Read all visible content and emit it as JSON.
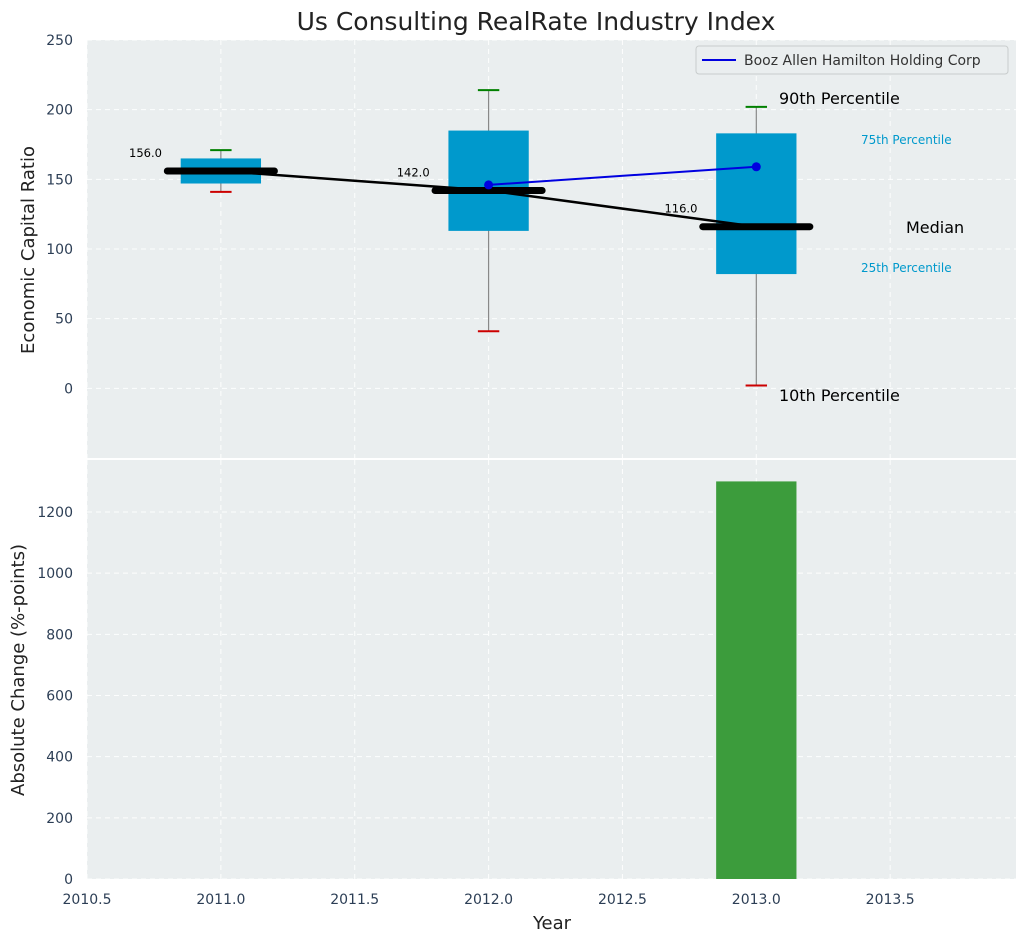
{
  "chart_data": [
    {
      "type": "box",
      "title": "Us Consulting RealRate Industry Index",
      "ylabel": "Economic Capital Ratio",
      "ylim": [
        -50,
        250
      ],
      "yticks": [
        0,
        50,
        100,
        150,
        200,
        250
      ],
      "grid": true,
      "legend_placement": "top-right",
      "boxes": [
        {
          "x": 2011,
          "p10": 141,
          "p25": 147,
          "median": 156,
          "p75": 165,
          "p90": 171,
          "median_label": "156.0"
        },
        {
          "x": 2012,
          "p10": 41,
          "p25": 113,
          "median": 142,
          "p75": 185,
          "p90": 214,
          "median_label": "142.0"
        },
        {
          "x": 2013,
          "p10": 2,
          "p25": 82,
          "median": 116,
          "p75": 183,
          "p90": 202,
          "median_label": "116.0"
        }
      ],
      "median_line": {
        "x": [
          2011,
          2012,
          2013
        ],
        "values": [
          156,
          142,
          116
        ]
      },
      "series": [
        {
          "name": "Booz Allen Hamilton Holding Corp",
          "x": [
            2012,
            2013
          ],
          "values": [
            146,
            159
          ],
          "color": "#0000e0"
        }
      ],
      "annotations": {
        "p90": "90th Percentile",
        "p75": "75th Percentile",
        "median": "Median",
        "p25": "25th Percentile",
        "p10": "10th Percentile"
      },
      "colors": {
        "box": "#0099cc",
        "median": "#000000",
        "p90_cap": "#008000",
        "p10_cap": "#cc0000",
        "panel_bg": "#eaeeef",
        "annotation_small": "#0099cc"
      }
    },
    {
      "type": "bar",
      "xlabel": "Year",
      "ylabel": "Absolute Change (%-points)",
      "x": [
        2013
      ],
      "values": [
        1300
      ],
      "ylim": [
        0,
        1370
      ],
      "yticks": [
        0,
        200,
        400,
        600,
        800,
        1000,
        1200
      ],
      "xlim": [
        2010.5,
        2013.97
      ],
      "xticks": [
        "2010.5",
        "2011.0",
        "2011.5",
        "2012.0",
        "2012.5",
        "2013.0",
        "2013.5"
      ],
      "grid": true,
      "colors": {
        "bar": "#3c9c3c"
      }
    }
  ]
}
